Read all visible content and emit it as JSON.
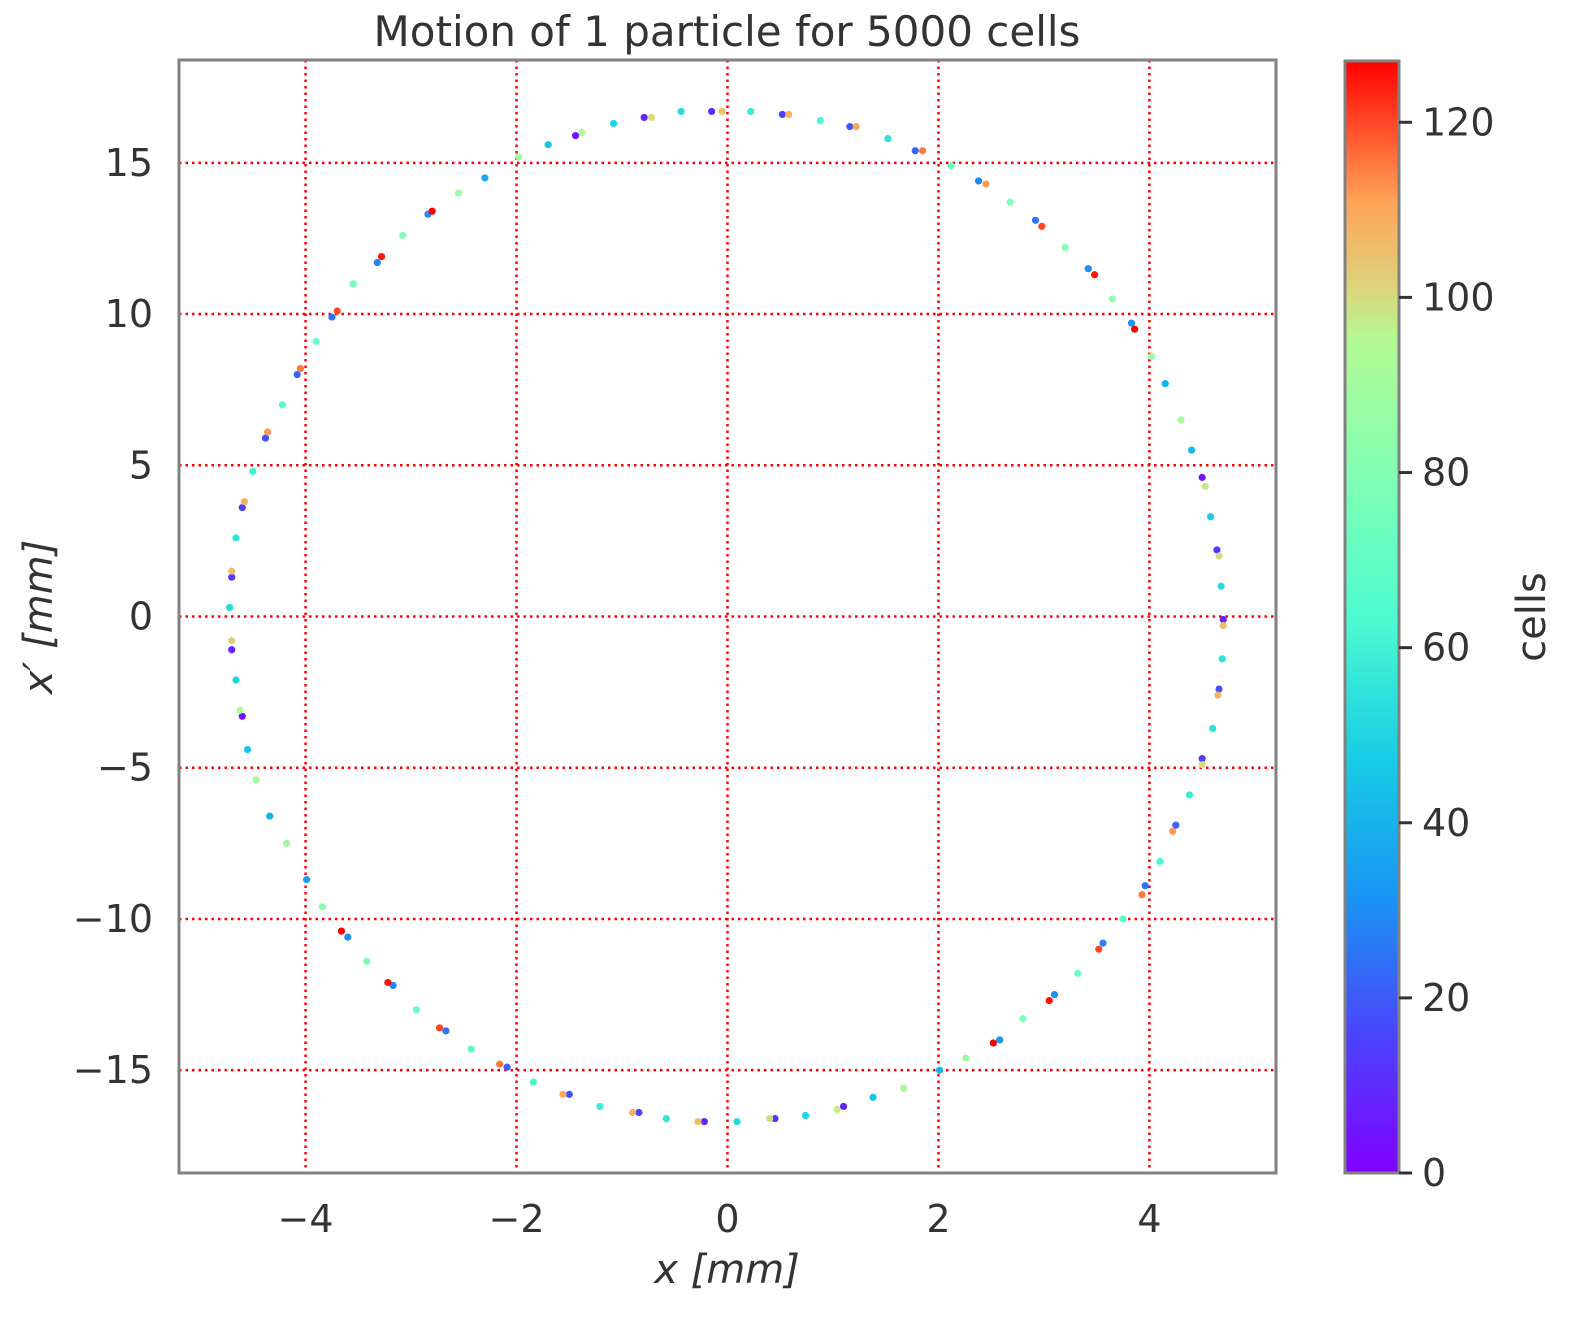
{
  "chart_data": {
    "type": "scatter",
    "title": "Motion of 1 particle for 5000 cells",
    "xlabel": "x [mm]",
    "ylabel": "x′ [mm]",
    "xlim": [
      -5.2,
      5.2
    ],
    "ylim": [
      -18.4,
      18.4
    ],
    "xticks": [
      -4,
      -2,
      0,
      2,
      4
    ],
    "xtick_labels": [
      "−4",
      "−2",
      "0",
      "2",
      "4"
    ],
    "yticks": [
      -15,
      -10,
      -5,
      0,
      5,
      10,
      15
    ],
    "ytick_labels": [
      "−15",
      "−10",
      "−5",
      "0",
      "5",
      "10",
      "15"
    ],
    "grid": true,
    "grid_color": "#ff0000",
    "grid_style": "dotted",
    "frame_color": "#808080",
    "colormap": "rainbow",
    "colorbar": {
      "label": "cells",
      "range": [
        0,
        127
      ],
      "ticks": [
        0,
        20,
        40,
        60,
        80,
        100,
        120
      ],
      "tick_labels": [
        "0",
        "20",
        "40",
        "60",
        "80",
        "100",
        "120"
      ]
    },
    "points": [
      [
        -0.15,
        16.7,
        10
      ],
      [
        -0.05,
        16.7,
        105
      ],
      [
        0.22,
        16.7,
        58
      ],
      [
        0.52,
        16.6,
        15
      ],
      [
        0.58,
        16.6,
        108
      ],
      [
        0.88,
        16.4,
        62
      ],
      [
        1.16,
        16.2,
        20
      ],
      [
        1.22,
        16.2,
        110
      ],
      [
        1.52,
        15.8,
        55
      ],
      [
        1.78,
        15.4,
        22
      ],
      [
        1.85,
        15.4,
        115
      ],
      [
        2.12,
        14.9,
        75
      ],
      [
        2.38,
        14.4,
        28
      ],
      [
        2.45,
        14.3,
        112
      ],
      [
        2.68,
        13.7,
        78
      ],
      [
        2.92,
        13.1,
        25
      ],
      [
        2.98,
        12.9,
        120
      ],
      [
        3.2,
        12.2,
        80
      ],
      [
        3.42,
        11.5,
        30
      ],
      [
        3.48,
        11.3,
        125
      ],
      [
        3.65,
        10.5,
        82
      ],
      [
        3.83,
        9.7,
        32
      ],
      [
        3.86,
        9.5,
        127
      ],
      [
        4.02,
        8.6,
        88
      ],
      [
        4.15,
        7.7,
        40
      ],
      [
        4.3,
        6.5,
        92
      ],
      [
        4.4,
        5.5,
        42
      ],
      [
        4.5,
        4.6,
        5
      ],
      [
        4.53,
        4.3,
        98
      ],
      [
        4.58,
        3.3,
        48
      ],
      [
        4.64,
        2.2,
        12
      ],
      [
        4.66,
        2.0,
        100
      ],
      [
        4.68,
        1.0,
        52
      ],
      [
        4.7,
        -0.1,
        8
      ],
      [
        4.7,
        -0.3,
        105
      ],
      [
        4.69,
        -1.4,
        55
      ],
      [
        4.66,
        -2.4,
        18
      ],
      [
        4.65,
        -2.6,
        108
      ],
      [
        4.6,
        -3.7,
        55
      ],
      [
        4.5,
        -4.7,
        15
      ],
      [
        4.5,
        -4.9,
        100
      ],
      [
        4.38,
        -5.9,
        58
      ],
      [
        4.25,
        -6.9,
        22
      ],
      [
        4.22,
        -7.1,
        112
      ],
      [
        4.1,
        -8.1,
        62
      ],
      [
        3.96,
        -8.9,
        25
      ],
      [
        3.93,
        -9.2,
        115
      ],
      [
        3.75,
        -10.0,
        68
      ],
      [
        3.56,
        -10.8,
        28
      ],
      [
        3.52,
        -11.0,
        120
      ],
      [
        3.32,
        -11.8,
        72
      ],
      [
        3.1,
        -12.5,
        30
      ],
      [
        3.05,
        -12.7,
        125
      ],
      [
        2.8,
        -13.3,
        78
      ],
      [
        2.58,
        -14.0,
        32
      ],
      [
        2.52,
        -14.1,
        127
      ],
      [
        2.26,
        -14.6,
        88
      ],
      [
        2.01,
        -15.0,
        40
      ],
      [
        1.67,
        -15.6,
        92
      ],
      [
        1.38,
        -15.9,
        45
      ],
      [
        1.1,
        -16.2,
        8
      ],
      [
        1.04,
        -16.3,
        98
      ],
      [
        0.74,
        -16.5,
        50
      ],
      [
        0.45,
        -16.6,
        12
      ],
      [
        0.4,
        -16.6,
        100
      ],
      [
        0.09,
        -16.7,
        52
      ],
      [
        -0.22,
        -16.7,
        10
      ],
      [
        -0.28,
        -16.7,
        105
      ],
      [
        -0.58,
        -16.6,
        55
      ],
      [
        -0.84,
        -16.4,
        15
      ],
      [
        -0.9,
        -16.4,
        108
      ],
      [
        -1.21,
        -16.2,
        58
      ],
      [
        -1.5,
        -15.8,
        18
      ],
      [
        -1.56,
        -15.8,
        110
      ],
      [
        -1.84,
        -15.4,
        62
      ],
      [
        -2.09,
        -14.9,
        22
      ],
      [
        -2.16,
        -14.8,
        115
      ],
      [
        -2.43,
        -14.3,
        68
      ],
      [
        -2.67,
        -13.7,
        25
      ],
      [
        -2.73,
        -13.6,
        120
      ],
      [
        -2.95,
        -13.0,
        72
      ],
      [
        -3.17,
        -12.2,
        28
      ],
      [
        -3.22,
        -12.1,
        125
      ],
      [
        -3.42,
        -11.4,
        78
      ],
      [
        -3.6,
        -10.6,
        30
      ],
      [
        -3.66,
        -10.4,
        127
      ],
      [
        -3.84,
        -9.6,
        82
      ],
      [
        -3.99,
        -8.7,
        35
      ],
      [
        -4.18,
        -7.5,
        88
      ],
      [
        -4.34,
        -6.6,
        40
      ],
      [
        -4.47,
        -5.4,
        92
      ],
      [
        -4.55,
        -4.4,
        45
      ],
      [
        -4.6,
        -3.3,
        5
      ],
      [
        -4.62,
        -3.1,
        95
      ],
      [
        -4.66,
        -2.1,
        50
      ],
      [
        -4.7,
        -1.1,
        8
      ],
      [
        -4.7,
        -0.8,
        102
      ],
      [
        -4.72,
        0.3,
        52
      ],
      [
        -4.7,
        1.3,
        12
      ],
      [
        -4.7,
        1.5,
        105
      ],
      [
        -4.66,
        2.6,
        55
      ],
      [
        -4.6,
        3.6,
        15
      ],
      [
        -4.58,
        3.8,
        108
      ],
      [
        -4.5,
        4.8,
        60
      ],
      [
        -4.38,
        5.9,
        18
      ],
      [
        -4.36,
        6.1,
        112
      ],
      [
        -4.22,
        7.0,
        65
      ],
      [
        -4.08,
        8.0,
        22
      ],
      [
        -4.05,
        8.2,
        115
      ],
      [
        -3.9,
        9.1,
        70
      ],
      [
        -3.75,
        9.9,
        25
      ],
      [
        -3.7,
        10.1,
        120
      ],
      [
        -3.55,
        11.0,
        75
      ],
      [
        -3.32,
        11.7,
        28
      ],
      [
        -3.28,
        11.9,
        125
      ],
      [
        -3.08,
        12.6,
        80
      ],
      [
        -2.84,
        13.3,
        30
      ],
      [
        -2.8,
        13.4,
        127
      ],
      [
        -2.55,
        14.0,
        85
      ],
      [
        -2.3,
        14.5,
        38
      ],
      [
        -1.98,
        15.2,
        88
      ],
      [
        -1.7,
        15.6,
        45
      ],
      [
        -1.44,
        15.9,
        5
      ],
      [
        -1.38,
        16.0,
        95
      ],
      [
        -1.08,
        16.3,
        50
      ],
      [
        -0.79,
        16.5,
        8
      ],
      [
        -0.72,
        16.5,
        100
      ],
      [
        -0.44,
        16.7,
        52
      ]
    ]
  }
}
